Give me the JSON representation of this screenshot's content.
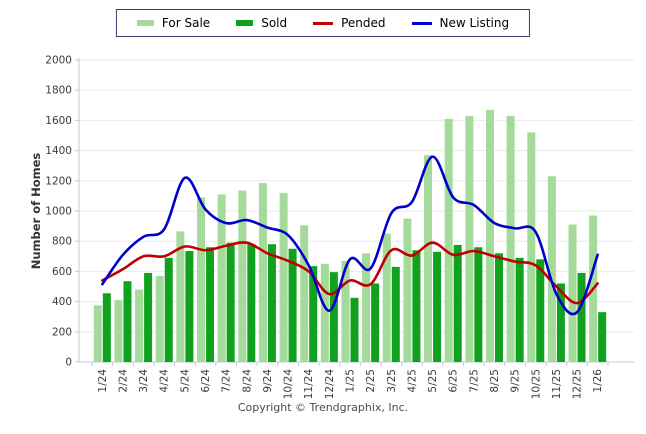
{
  "legend": {
    "items": [
      {
        "label": "For Sale",
        "type": "bar",
        "color": "#A4DB9A"
      },
      {
        "label": "Sold",
        "type": "bar",
        "color": "#10A21F"
      },
      {
        "label": "Pended",
        "type": "line",
        "color": "#C00000"
      },
      {
        "label": "New Listing",
        "type": "line",
        "color": "#0000CD"
      }
    ]
  },
  "footer": {
    "copyright": "Copyright © Trendgraphix, Inc."
  },
  "chart_data": {
    "type": "bar",
    "title": "",
    "xlabel": "",
    "ylabel": "Number of Homes",
    "ylim": [
      0,
      2000
    ],
    "ytick_step": 200,
    "grid": true,
    "legend_position": "top-center",
    "categories": [
      "1/24",
      "2/24",
      "3/24",
      "4/24",
      "5/24",
      "6/24",
      "7/24",
      "8/24",
      "9/24",
      "10/24",
      "11/24",
      "12/24",
      "1/25",
      "2/25",
      "3/25",
      "4/25",
      "5/25",
      "6/25",
      "7/25",
      "8/25",
      "9/25",
      "10/25",
      "11/25",
      "12/25",
      "1/26"
    ],
    "series": [
      {
        "name": "For Sale",
        "type": "bar",
        "color": "#A4DB9A",
        "values": [
          375,
          410,
          480,
          570,
          865,
          1090,
          1110,
          1135,
          1185,
          1120,
          905,
          650,
          670,
          720,
          850,
          950,
          1370,
          1610,
          1630,
          1670,
          1630,
          1520,
          1230,
          910,
          970
        ]
      },
      {
        "name": "Sold",
        "type": "bar",
        "color": "#10A21F",
        "values": [
          455,
          535,
          590,
          690,
          735,
          760,
          790,
          780,
          780,
          750,
          635,
          595,
          425,
          520,
          630,
          740,
          730,
          775,
          760,
          720,
          690,
          680,
          520,
          590,
          330
        ]
      },
      {
        "name": "Pended",
        "type": "line",
        "color": "#C00000",
        "values": [
          540,
          615,
          700,
          700,
          765,
          740,
          770,
          790,
          720,
          670,
          600,
          450,
          540,
          515,
          740,
          705,
          790,
          710,
          735,
          700,
          665,
          640,
          500,
          390,
          520
        ]
      },
      {
        "name": "New Listing",
        "type": "line",
        "color": "#0000CD",
        "values": [
          515,
          710,
          830,
          880,
          1220,
          1010,
          920,
          940,
          890,
          840,
          640,
          340,
          680,
          620,
          985,
          1060,
          1360,
          1090,
          1040,
          920,
          885,
          860,
          450,
          330,
          710
        ]
      }
    ]
  }
}
